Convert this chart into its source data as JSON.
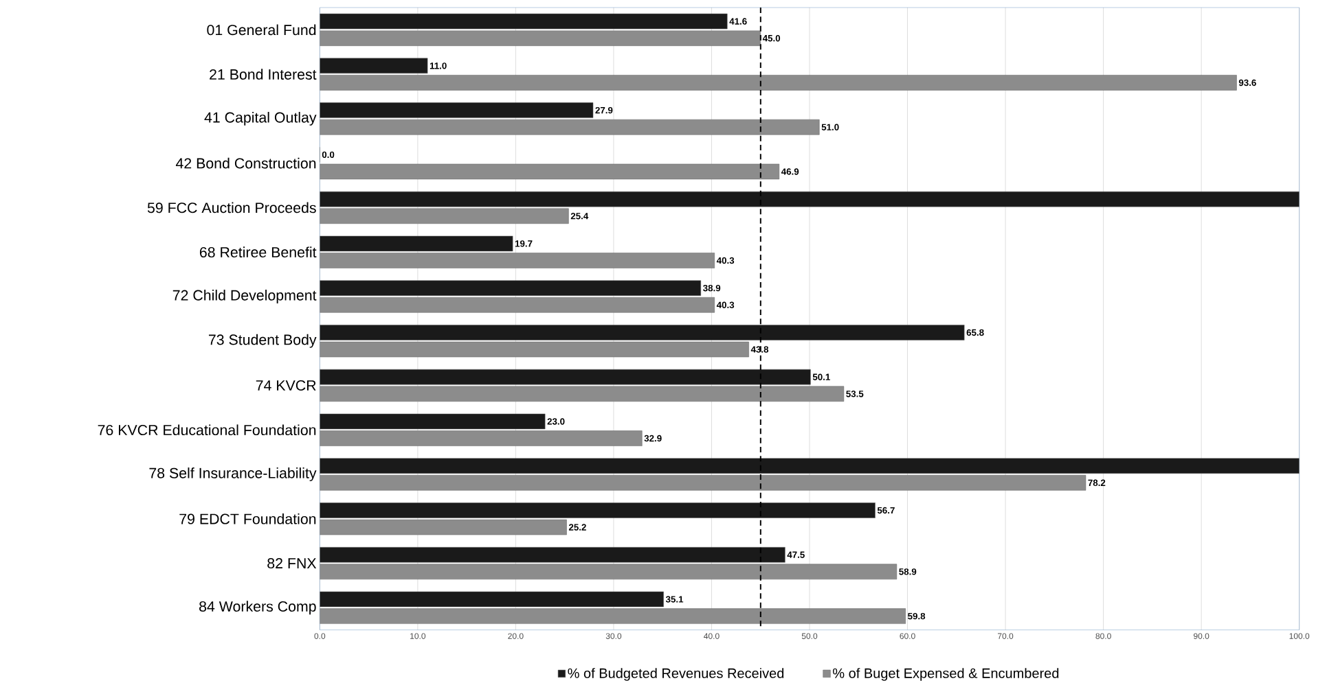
{
  "chart_data": {
    "type": "bar",
    "orientation": "horizontal",
    "categories": [
      "01 General Fund",
      "21 Bond Interest",
      "41 Capital Outlay",
      "42 Bond Construction",
      "59 FCC Auction Proceeds",
      "68 Retiree Benefit",
      "72 Child Development",
      "73 Student Body",
      "74 KVCR",
      "76 KVCR Educational Foundation",
      "78 Self Insurance-Liability",
      "79 EDCT Foundation",
      "82 FNX",
      "84 Workers Comp"
    ],
    "series": [
      {
        "name": "% of Budgeted Revenues Received",
        "color": "#1a1a1a",
        "values": [
          41.6,
          11.0,
          27.9,
          0.0,
          100,
          19.7,
          38.9,
          65.8,
          50.1,
          23.0,
          100,
          56.7,
          47.5,
          35.1
        ],
        "value_labels": [
          "41.6",
          "11.0",
          "27.9",
          "0.0",
          null,
          "19.7",
          "38.9",
          "65.8",
          "50.1",
          "23.0",
          null,
          "56.7",
          "47.5",
          "35.1"
        ]
      },
      {
        "name": "% of Buget Expensed & Encumbered",
        "color": "#8c8c8c",
        "values": [
          45.0,
          93.6,
          51.0,
          46.9,
          25.4,
          40.3,
          40.3,
          43.8,
          53.5,
          32.9,
          78.2,
          25.2,
          58.9,
          59.8
        ],
        "value_labels": [
          "45.0",
          "93.6",
          "51.0",
          "46.9",
          "25.4",
          "40.3",
          "40.3",
          "43.8",
          "53.5",
          "32.9",
          "78.2",
          "25.2",
          "58.9",
          "59.8"
        ]
      }
    ],
    "xlim": [
      0,
      100
    ],
    "xticks": [
      {
        "value": 0,
        "label": "0.0"
      },
      {
        "value": 10,
        "label": "10.0"
      },
      {
        "value": 20,
        "label": "20.0"
      },
      {
        "value": 30,
        "label": "30.0"
      },
      {
        "value": 40,
        "label": "40.0"
      },
      {
        "value": 50,
        "label": "50.0"
      },
      {
        "value": 60,
        "label": "60.0"
      },
      {
        "value": 70,
        "label": "70.0"
      },
      {
        "value": 80,
        "label": "80.0"
      },
      {
        "value": 90,
        "label": "90.0"
      },
      {
        "value": 100,
        "label": "100.0"
      }
    ],
    "grid": "x",
    "legend": "bottom",
    "ref_lines": [
      {
        "axis": "x",
        "value": 45,
        "color": "#000000",
        "line_style": "dashed"
      }
    ]
  }
}
